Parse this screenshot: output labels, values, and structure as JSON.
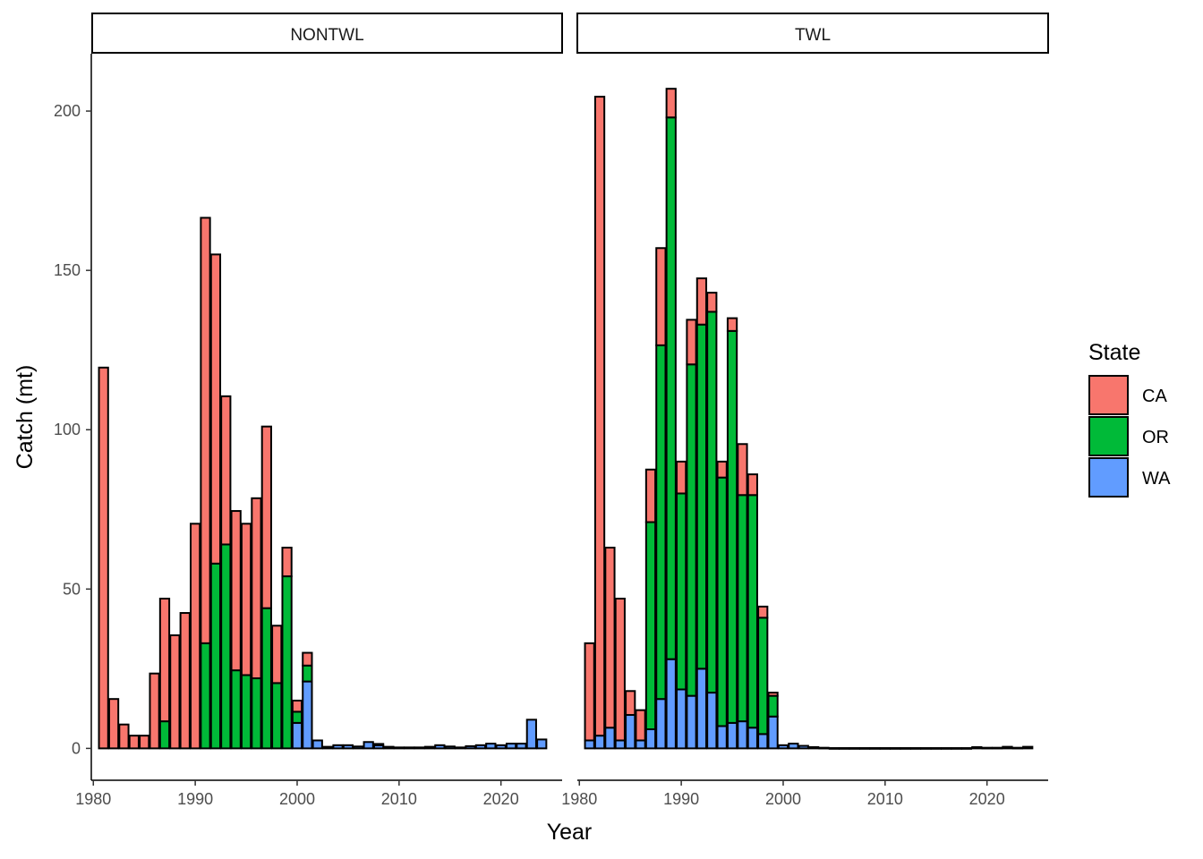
{
  "chart_data": {
    "type": "bar",
    "stacked": true,
    "x_axis_title": "Year",
    "y_axis_title": "Catch (mt)",
    "x_ticks": [
      1980,
      1990,
      2000,
      2010,
      2020
    ],
    "y_ticks": [
      0,
      50,
      100,
      150,
      200
    ],
    "ylim": [
      -10,
      218
    ],
    "xlim": [
      1979.8,
      2026.0
    ],
    "legend": {
      "title": "State",
      "position": "right",
      "items": [
        {
          "label": "CA",
          "color": "#F8766D"
        },
        {
          "label": "OR",
          "color": "#00BA38"
        },
        {
          "label": "WA",
          "color": "#619CFF"
        }
      ]
    },
    "panels": [
      {
        "strip": "NONTWL",
        "years": [
          1981,
          1982,
          1983,
          1984,
          1985,
          1986,
          1987,
          1988,
          1989,
          1990,
          1991,
          1992,
          1993,
          1994,
          1995,
          1996,
          1997,
          1998,
          1999,
          2000,
          2001,
          2002,
          2003,
          2004,
          2005,
          2006,
          2007,
          2008,
          2009,
          2010,
          2011,
          2012,
          2013,
          2014,
          2015,
          2016,
          2017,
          2018,
          2019,
          2020,
          2021,
          2022,
          2023,
          2024
        ],
        "series": [
          {
            "name": "WA",
            "values": [
              0,
              0,
              0,
              0,
              0,
              0,
              0,
              0,
              0,
              0,
              0,
              0,
              0,
              0,
              0,
              0,
              0,
              0,
              0,
              8,
              21,
              2.5,
              0.5,
              1,
              1,
              0.6,
              2,
              1,
              0.5,
              0.3,
              0.3,
              0.3,
              0.5,
              1,
              0.6,
              0.3,
              0.7,
              1,
              1.5,
              1,
              1.5,
              1.5,
              9,
              2.8
            ]
          },
          {
            "name": "OR",
            "values": [
              0,
              0,
              0,
              0,
              0,
              0,
              8.5,
              0,
              0,
              0,
              33,
              58,
              64,
              24.5,
              23,
              22,
              44,
              20.5,
              54,
              3.5,
              5,
              0,
              0,
              0,
              0,
              0,
              0,
              0.4,
              0,
              0,
              0,
              0,
              0,
              0,
              0,
              0,
              0,
              0,
              0,
              0,
              0,
              0,
              0,
              0
            ]
          },
          {
            "name": "CA",
            "values": [
              119.5,
              15.5,
              7.5,
              4,
              4,
              23.5,
              38.5,
              35.5,
              42.5,
              70.5,
              133.5,
              97,
              46.5,
              50,
              47.5,
              56.5,
              57,
              18,
              9,
              3.5,
              4,
              0,
              0,
              0,
              0,
              0,
              0,
              0,
              0,
              0,
              0,
              0,
              0,
              0,
              0,
              0,
              0,
              0,
              0,
              0,
              0,
              0,
              0,
              0
            ]
          }
        ]
      },
      {
        "strip": "TWL",
        "years": [
          1981,
          1982,
          1983,
          1984,
          1985,
          1986,
          1987,
          1988,
          1989,
          1990,
          1991,
          1992,
          1993,
          1994,
          1995,
          1996,
          1997,
          1998,
          1999,
          2000,
          2001,
          2002,
          2003,
          2004,
          2005,
          2006,
          2007,
          2008,
          2009,
          2010,
          2011,
          2012,
          2013,
          2014,
          2015,
          2016,
          2017,
          2018,
          2019,
          2020,
          2021,
          2022,
          2023,
          2024
        ],
        "series": [
          {
            "name": "WA",
            "values": [
              2.5,
              4,
              6.5,
              2.5,
              10.5,
              2.5,
              6,
              15.5,
              28,
              18.5,
              16.5,
              25,
              17.5,
              7,
              8,
              8.5,
              6.5,
              4.5,
              10,
              1,
              1.5,
              0.8,
              0.4,
              0.2,
              0.1,
              0.1,
              0.1,
              0.1,
              0.1,
              0.1,
              0.1,
              0.1,
              0.1,
              0.1,
              0.1,
              0.1,
              0.1,
              0.1,
              0.4,
              0.2,
              0.2,
              0.5,
              0.2,
              0.5
            ]
          },
          {
            "name": "OR",
            "values": [
              0,
              0,
              0,
              0,
              0,
              0,
              65,
              111,
              170,
              61.5,
              104,
              108,
              119.5,
              78,
              123,
              71,
              73,
              36.5,
              6.5,
              0,
              0,
              0,
              0,
              0,
              0,
              0,
              0,
              0,
              0,
              0,
              0,
              0,
              0,
              0,
              0,
              0,
              0,
              0,
              0,
              0,
              0,
              0,
              0,
              0
            ]
          },
          {
            "name": "CA",
            "values": [
              30.5,
              200.5,
              56.5,
              44.5,
              7.5,
              9.5,
              16.5,
              30.5,
              9,
              10,
              14,
              14.5,
              6,
              5,
              4,
              16,
              6.5,
              3.5,
              1,
              0,
              0,
              0,
              0,
              0,
              0,
              0,
              0,
              0,
              0,
              0,
              0,
              0,
              0,
              0,
              0,
              0,
              0,
              0,
              0,
              0,
              0,
              0,
              0,
              0
            ]
          }
        ]
      }
    ]
  }
}
